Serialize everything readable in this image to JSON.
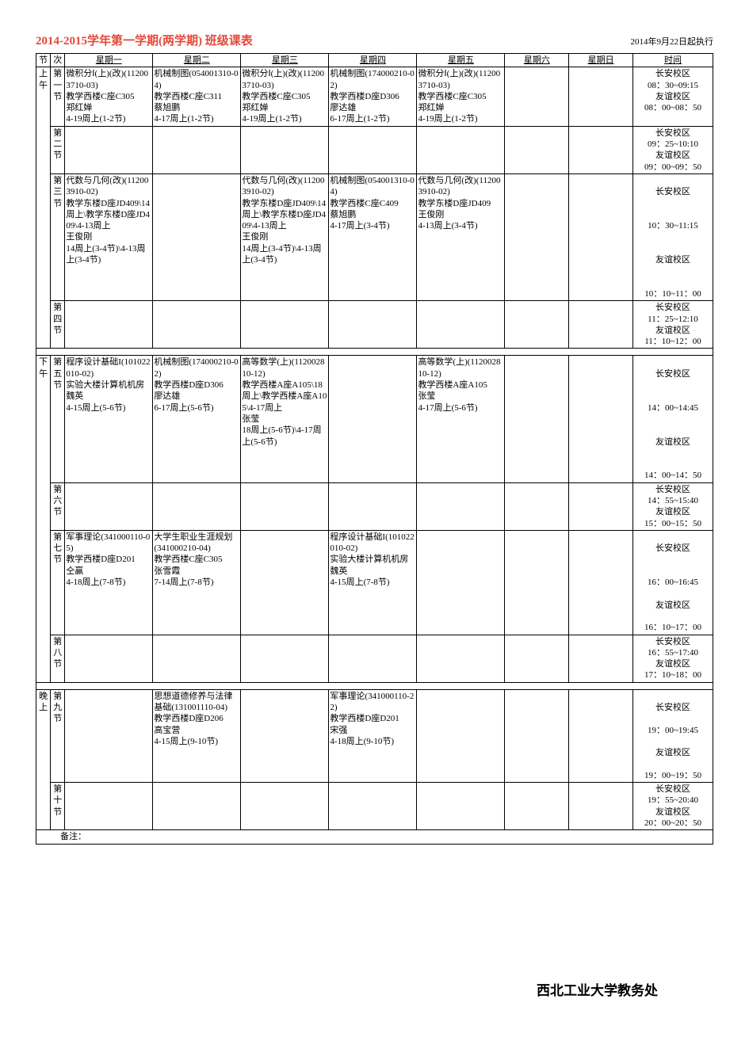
{
  "title": "2014-2015学年第一学期(两学期)   班级课表",
  "execDate": "2014年9月22日起执行",
  "footer": "西北工业大学教务处",
  "noteLabel": "备注：",
  "header": {
    "jie": "节",
    "ci": "次",
    "d1": "星期一",
    "d2": "星期二",
    "d3": "星期三",
    "d4": "星期四",
    "d5": "星期五",
    "d6": "星期六",
    "d7": "星期日",
    "time": "时间"
  },
  "blocks": {
    "A": "上午",
    "B": "下午",
    "C": "晚上"
  },
  "periods": {
    "p1": "第一节",
    "p2": "第二节",
    "p3": "第三节",
    "p4": "第四节",
    "p5": "第五节",
    "p6": "第六节",
    "p7": "第七节",
    "p8": "第八节",
    "p9": "第九节",
    "p10": "第十节"
  },
  "cells": {
    "p1": {
      "mon": "微积分Ⅰ(上)(改)(112003710-03)\n教学西楼C座C305\n郑红婵\n4-19周上(1-2节)",
      "tue": "机械制图(054001310-04)\n教学西楼C座C311\n蔡旭鹏\n4-17周上(1-2节)",
      "wed": "微积分Ⅰ(上)(改)(112003710-03)\n教学西楼C座C305\n郑红婵\n4-19周上(1-2节)",
      "thu": "机械制图(174000210-02)\n教学西楼D座D306\n廖达雄\n6-17周上(1-2节)",
      "fri": "微积分Ⅰ(上)(改)(112003710-03)\n教学西楼C座C305\n郑红婵\n4-19周上(1-2节)"
    },
    "p3": {
      "mon": "代数与几何(改)(112003910-02)\n教学东楼D座JD409\\14周上\\教学东楼D座JD409\\4-13周上\n王俊刚\n14周上(3-4节)\\4-13周上(3-4节)",
      "wed": "代数与几何(改)(112003910-02)\n教学东楼D座JD409\\14周上\\教学东楼D座JD409\\4-13周上\n王俊刚\n14周上(3-4节)\\4-13周上(3-4节)",
      "thu": "机械制图(054001310-04)\n教学西楼C座C409\n蔡旭鹏\n4-17周上(3-4节)",
      "fri": "代数与几何(改)(112003910-02)\n教学东楼D座JD409\n王俊刚\n4-13周上(3-4节)"
    },
    "p5": {
      "mon": "程序设计基础I(101022010-02)\n实验大楼计算机机房\n魏英\n4-15周上(5-6节)",
      "tue": "机械制图(174000210-02)\n教学西楼D座D306\n廖达雄\n6-17周上(5-6节)",
      "wed": "高等数学(上)(112002810-12)\n教学西楼A座A105\\18周上\\教学西楼A座A105\\4-17周上\n张莹\n18周上(5-6节)\\4-17周上(5-6节)",
      "fri": "高等数学(上)(112002810-12)\n教学西楼A座A105\n张莹\n4-17周上(5-6节)"
    },
    "p7": {
      "mon": "军事理论(341000110-05)\n教学西楼D座D201\n仝赢\n4-18周上(7-8节)",
      "tue": "大学生职业生涯规划(341000210-04)\n教学西楼C座C305\n张雪霞\n7-14周上(7-8节)",
      "thu": "程序设计基础I(101022010-02)\n实验大楼计算机机房\n魏英\n4-15周上(7-8节)"
    },
    "p9": {
      "tue": "思想道德修养与法律基础(131001110-04)\n教学西楼D座D206\n高宝营\n4-15周上(9-10节)",
      "thu": "军事理论(341000110-22)\n教学西楼D座D201\n宋强\n4-18周上(9-10节)"
    }
  },
  "times": {
    "p1": "长安校区\n08：30~09:15\n友谊校区\n08：00~08：50",
    "p2": "长安校区\n09：25~10:10\n友谊校区\n09：00~09：50",
    "p3a": "长安校区",
    "p3b": "10：30~11:15",
    "p3c": "友谊校区",
    "p3d": "10：10~11：00",
    "p4": "长安校区\n11：25~12:10\n友谊校区\n11：10~12：00",
    "p5a": "长安校区",
    "p5b": "14：00~14:45",
    "p5c": "友谊校区",
    "p5d": "14：00~14：50",
    "p6": "长安校区\n14：55~15:40\n友谊校区\n15：00~15：50",
    "p7a": "长安校区",
    "p7b": "16：00~16:45",
    "p7c": "友谊校区",
    "p7d": "16：10~17：00",
    "p8": "长安校区\n16：55~17:40\n友谊校区\n17：10~18：00",
    "p9a": "长安校区",
    "p9b": "19：00~19:45",
    "p9c": "友谊校区",
    "p9d": "19：00~19：50",
    "p10": "长安校区\n19：55~20:40\n友谊校区\n20：00~20：50"
  }
}
